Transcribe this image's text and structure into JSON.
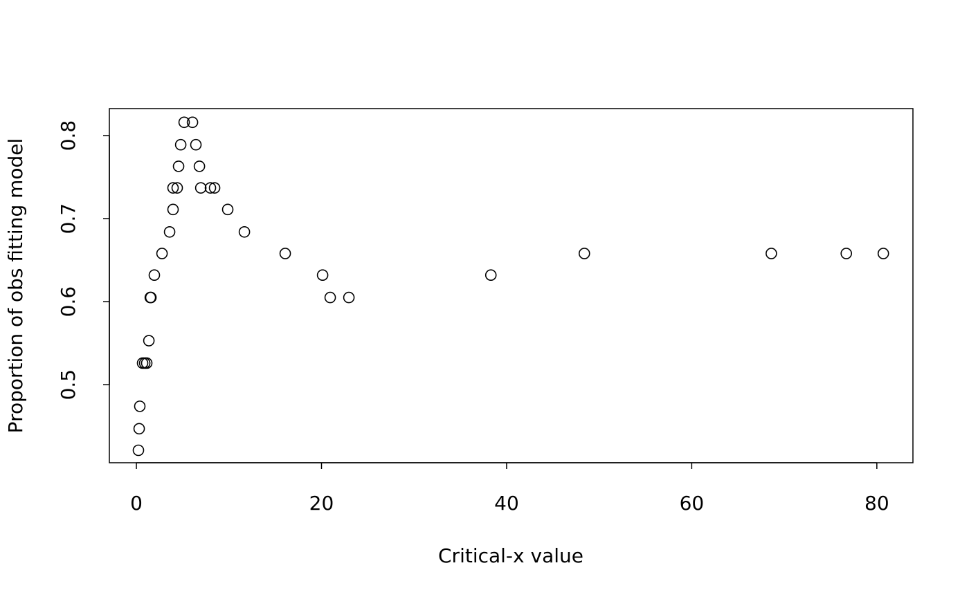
{
  "chart_data": {
    "type": "scatter",
    "x_label": "Critical-x value",
    "y_label": "Proportion of obs fitting model",
    "x": [
      0.22,
      0.3,
      0.37,
      0.67,
      0.9,
      1.12,
      1.35,
      1.5,
      1.57,
      1.94,
      2.77,
      3.59,
      3.96,
      3.96,
      4.41,
      4.56,
      4.79,
      5.16,
      6.06,
      6.43,
      6.81,
      6.96,
      8.0,
      8.45,
      9.87,
      11.67,
      16.08,
      20.12,
      20.94,
      22.96,
      38.3,
      48.4,
      68.6,
      76.7,
      80.7
    ],
    "values": [
      0.421,
      0.447,
      0.474,
      0.526,
      0.526,
      0.526,
      0.553,
      0.605,
      0.605,
      0.632,
      0.658,
      0.684,
      0.711,
      0.737,
      0.737,
      0.763,
      0.789,
      0.816,
      0.816,
      0.789,
      0.763,
      0.737,
      0.737,
      0.737,
      0.711,
      0.684,
      0.658,
      0.632,
      0.605,
      0.605,
      0.632,
      0.658,
      0.658,
      0.658,
      0.658
    ],
    "color": "#000000",
    "xlim": [
      -2.92,
      83.9
    ],
    "xticks": [
      0,
      20,
      40,
      60,
      80
    ],
    "ylim": [
      0.406,
      0.8325
    ],
    "yticks": [
      0.5,
      0.6,
      0.7,
      0.8
    ]
  }
}
